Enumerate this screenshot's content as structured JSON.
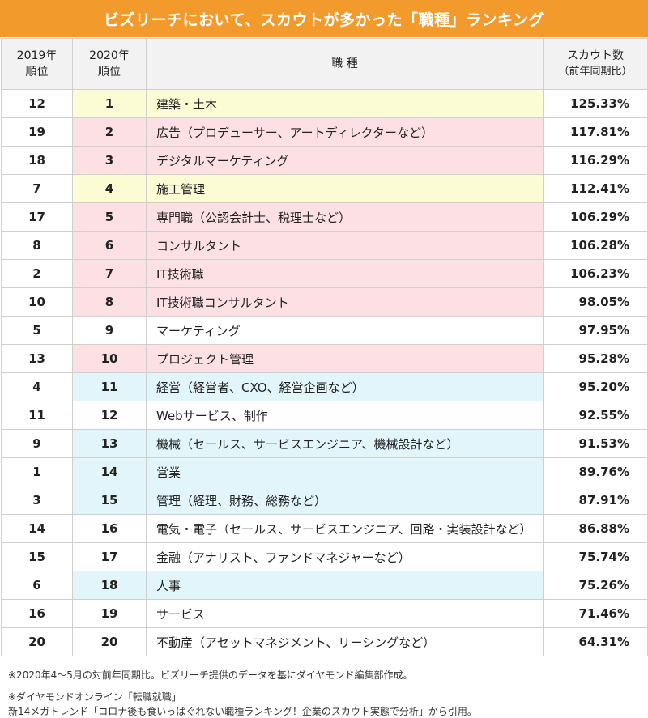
{
  "title": "ビズリーチにおいて、スカウトが多かった「職種」ランキング",
  "headers": {
    "y2019": [
      "2019年",
      "順位"
    ],
    "y2020": [
      "2020年",
      "順位"
    ],
    "job": "職 種",
    "scout": [
      "スカウト数",
      "（前年同期比）"
    ]
  },
  "rows": [
    {
      "r2019": "12",
      "r2020": "1",
      "job": "建築・土木",
      "pct": "125.33%",
      "color": "yellow"
    },
    {
      "r2019": "19",
      "r2020": "2",
      "job": "広告（プロデューサー、アートディレクターなど）",
      "pct": "117.81%",
      "color": "pink"
    },
    {
      "r2019": "18",
      "r2020": "3",
      "job": "デジタルマーケティング",
      "pct": "116.29%",
      "color": "pink"
    },
    {
      "r2019": "7",
      "r2020": "4",
      "job": "施工管理",
      "pct": "112.41%",
      "color": "yellow"
    },
    {
      "r2019": "17",
      "r2020": "5",
      "job": "専門職（公認会計士、税理士など）",
      "pct": "106.29%",
      "color": "pink"
    },
    {
      "r2019": "8",
      "r2020": "6",
      "job": "コンサルタント",
      "pct": "106.28%",
      "color": "pink"
    },
    {
      "r2019": "2",
      "r2020": "7",
      "job": "IT技術職",
      "pct": "106.23%",
      "color": "pink"
    },
    {
      "r2019": "10",
      "r2020": "8",
      "job": "IT技術職コンサルタント",
      "pct": "98.05%",
      "color": "pink"
    },
    {
      "r2019": "5",
      "r2020": "9",
      "job": "マーケティング",
      "pct": "97.95%",
      "color": "white"
    },
    {
      "r2019": "13",
      "r2020": "10",
      "job": "プロジェクト管理",
      "pct": "95.28%",
      "color": "pink"
    },
    {
      "r2019": "4",
      "r2020": "11",
      "job": "経営（経営者、CXO、経営企画など）",
      "pct": "95.20%",
      "color": "blue"
    },
    {
      "r2019": "11",
      "r2020": "12",
      "job": "Webサービス、制作",
      "pct": "92.55%",
      "color": "white"
    },
    {
      "r2019": "9",
      "r2020": "13",
      "job": "機械（セールス、サービスエンジニア、機械設計など）",
      "pct": "91.53%",
      "color": "blue"
    },
    {
      "r2019": "1",
      "r2020": "14",
      "job": "営業",
      "pct": "89.76%",
      "color": "blue"
    },
    {
      "r2019": "3",
      "r2020": "15",
      "job": "管理（経理、財務、総務など）",
      "pct": "87.91%",
      "color": "blue"
    },
    {
      "r2019": "14",
      "r2020": "16",
      "job": "電気・電子（セールス、サービスエンジニア、回路・実装設計など）",
      "pct": "86.88%",
      "color": "white"
    },
    {
      "r2019": "15",
      "r2020": "17",
      "job": "金融（アナリスト、ファンドマネジャーなど）",
      "pct": "75.74%",
      "color": "white"
    },
    {
      "r2019": "6",
      "r2020": "18",
      "job": "人事",
      "pct": "75.26%",
      "color": "blue"
    },
    {
      "r2019": "16",
      "r2020": "19",
      "job": "サービス",
      "pct": "71.46%",
      "color": "white"
    },
    {
      "r2019": "20",
      "r2020": "20",
      "job": "不動産（アセットマネジメント、リーシングなど）",
      "pct": "64.31%",
      "color": "white"
    }
  ],
  "footnotes": [
    "※2020年4～5月の対前年同期比。ビズリーチ提供のデータを基にダイヤモンド編集部作成。",
    "※ダイヤモンドオンライン「転職就職」",
    "新14メガトレンド「コロナ後も食いっぱぐれない職種ランキング！企業のスカウト実態で分析」から引用。"
  ],
  "colors": {
    "banner": "#f39a2c",
    "yellow": "#fbfbd4",
    "pink": "#fde0e4",
    "blue": "#e2f5fb",
    "header_bg": "#f2f2f2"
  }
}
